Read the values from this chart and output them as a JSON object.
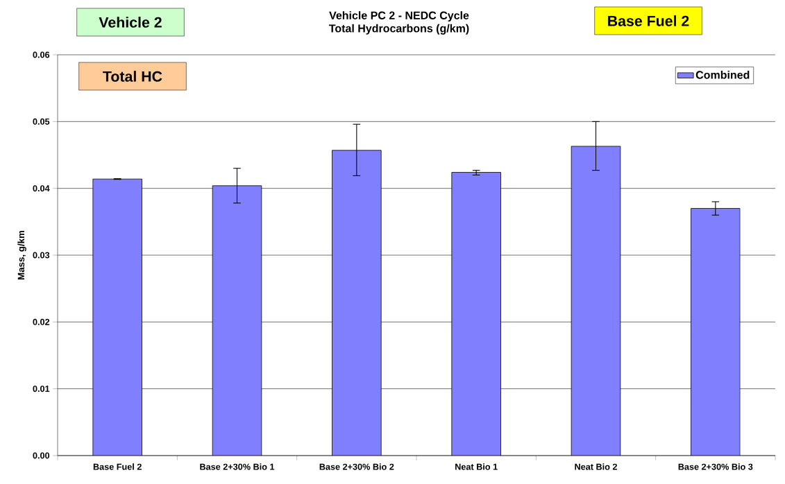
{
  "chart_data": {
    "type": "bar",
    "title": "Vehicle PC 2 - NEDC Cycle",
    "subtitle": "Total Hydrocarbons (g/km)",
    "ylabel": "Mass, g/km",
    "annotations": [
      "Vehicle 2",
      "Base Fuel 2",
      "Total HC"
    ],
    "categories": [
      "Base Fuel 2",
      "Base 2+30% Bio 1",
      "Base 2+30% Bio 2",
      "Neat Bio 1",
      "Neat Bio 2",
      "Base 2+30% Bio 3"
    ],
    "series": [
      {
        "name": "Combined",
        "color": "#8080ff",
        "values": [
          0.0414,
          0.0404,
          0.0457,
          0.0424,
          0.0463,
          0.037
        ],
        "errors": [
          5e-05,
          [
            0.0378,
            0.043
          ],
          [
            0.0419,
            0.0496
          ],
          [
            0.042,
            0.0427
          ],
          [
            0.0427,
            0.05
          ],
          [
            0.036,
            0.038
          ]
        ]
      }
    ],
    "ylim": [
      0,
      0.06
    ],
    "yticks": [
      {
        "value": 0,
        "label": "0.00"
      },
      {
        "value": 0.01,
        "label": "0.01"
      },
      {
        "value": 0.02,
        "label": "0.02"
      },
      {
        "value": 0.03,
        "label": "0.03"
      },
      {
        "value": 0.04,
        "label": "0.04"
      },
      {
        "value": 0.05,
        "label": "0.05"
      },
      {
        "value": 0.06,
        "label": "0.06"
      }
    ],
    "grid": "y",
    "legend": "top right"
  }
}
